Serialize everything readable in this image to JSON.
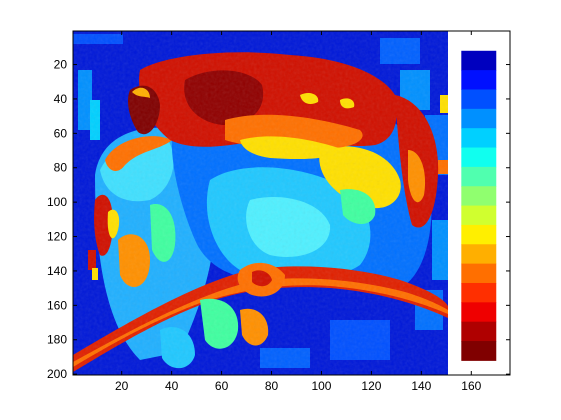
{
  "chart_data": {
    "type": "heatmap",
    "title": "",
    "xlabel": "",
    "ylabel": "",
    "xlim": [
      0.5,
      175.5
    ],
    "ylim": [
      0.5,
      200.5
    ],
    "y_reversed": true,
    "grid": false,
    "x_ticks": [
      20,
      40,
      60,
      80,
      100,
      120,
      140,
      160
    ],
    "x_tick_labels": [
      "20",
      "40",
      "60",
      "80",
      "100",
      "120",
      "140",
      "160"
    ],
    "y_ticks": [
      20,
      40,
      60,
      80,
      100,
      120,
      140,
      160,
      180,
      200
    ],
    "y_tick_labels": [
      "20",
      "40",
      "60",
      "80",
      "100",
      "120",
      "140",
      "160",
      "180",
      "200"
    ],
    "image_extent_x": [
      0.5,
      150.5
    ],
    "colormap": "jet",
    "colorbar": {
      "x_range": [
        156,
        170
      ],
      "y_range": [
        12,
        192
      ],
      "levels": 16,
      "colors_top_to_bottom": [
        "#0000bf",
        "#0010ff",
        "#0050ff",
        "#0090ff",
        "#00d0ff",
        "#10ffef",
        "#50ffaf",
        "#90ff6f",
        "#d0ff2f",
        "#ffef00",
        "#ffaf00",
        "#ff6f00",
        "#ff2f00",
        "#ef0000",
        "#af0000",
        "#800000"
      ]
    },
    "image_regions": [
      {
        "name": "background",
        "color": "#0018d8"
      },
      {
        "name": "parrot-head-red",
        "color": "#d01000"
      },
      {
        "name": "parrot-head-dark-red",
        "color": "#900000"
      },
      {
        "name": "parrot-body-blue",
        "color": "#0070ff"
      },
      {
        "name": "parrot-body-cyan",
        "color": "#20c8ff"
      },
      {
        "name": "highlight-yellow",
        "color": "#ffe000"
      },
      {
        "name": "branch-orange",
        "color": "#ff7000"
      },
      {
        "name": "branch-red",
        "color": "#e02000"
      },
      {
        "name": "left-parrot-cyan",
        "color": "#40e0ff"
      },
      {
        "name": "foliage-green",
        "color": "#40ffa0"
      }
    ]
  }
}
